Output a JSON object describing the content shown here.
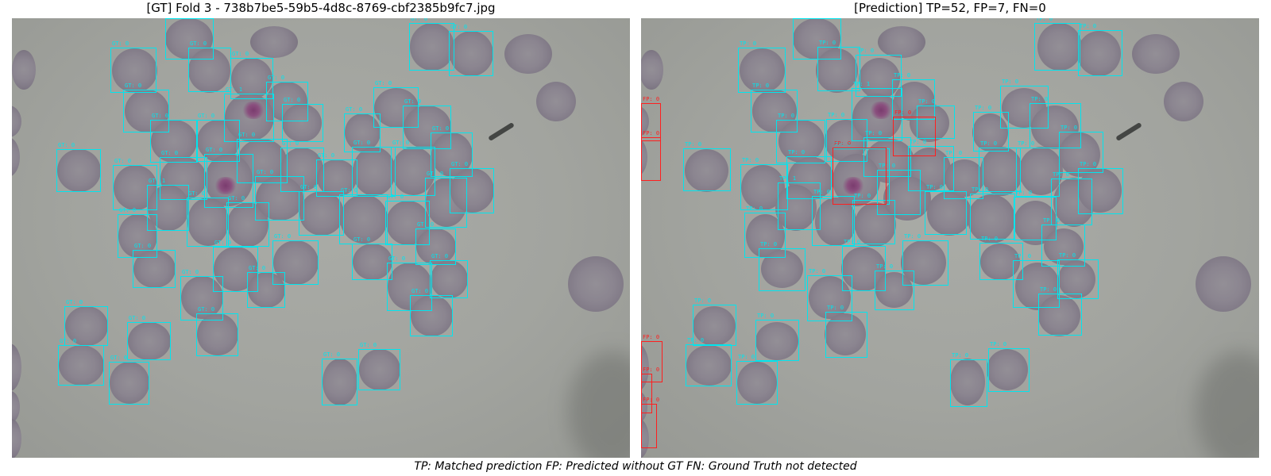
{
  "left_panel": {
    "title": "[GT] Fold 3 - 738b7be5-59b5-4d8c-8769-cbf2385b9fc7.jpg",
    "boxes": [
      {
        "label": "GT: 0"
      },
      {
        "label": "GT: 0"
      },
      {
        "label": "GT: 0"
      },
      {
        "label": "GT: 0"
      },
      {
        "label": "GT: 0"
      },
      {
        "label": "GT: 0"
      },
      {
        "label": "GT: 0"
      },
      {
        "label": "GT: 0"
      },
      {
        "label": "GT: 0"
      },
      {
        "label": "GT: 1"
      },
      {
        "label": "GT: 0"
      },
      {
        "label": "GT: 0"
      },
      {
        "label": "GT: 0"
      },
      {
        "label": "GT: 0"
      },
      {
        "label": "GT: 0"
      },
      {
        "label": "GT: 0"
      },
      {
        "label": "GT: 0"
      },
      {
        "label": "GT: 0"
      },
      {
        "label": "GT: 0"
      },
      {
        "label": "GT: 0"
      },
      {
        "label": "GT: 1"
      },
      {
        "label": "GT: 0"
      },
      {
        "label": "GT: 0"
      },
      {
        "label": "GT: 0"
      },
      {
        "label": "GT: 0"
      },
      {
        "label": "GT: 0"
      },
      {
        "label": "GT: 0"
      },
      {
        "label": "GT: 0"
      },
      {
        "label": "GT: 0"
      },
      {
        "label": "GT: 0"
      },
      {
        "label": "GT: 0"
      },
      {
        "label": "GT: 0"
      },
      {
        "label": "GT: 0"
      },
      {
        "label": "GT: 0"
      },
      {
        "label": "GT: 0"
      },
      {
        "label": "GT: 0"
      },
      {
        "label": "GT: 0"
      },
      {
        "label": "GT: 0"
      },
      {
        "label": "GT: 0"
      },
      {
        "label": "GT: 0"
      },
      {
        "label": "GT: 0"
      },
      {
        "label": "GT: 0"
      },
      {
        "label": "GT: 0"
      },
      {
        "label": "GT: 0"
      },
      {
        "label": "GT: 0"
      },
      {
        "label": "GT: 0"
      },
      {
        "label": "GT: 0"
      },
      {
        "label": "GT: 0"
      },
      {
        "label": "GT: 0"
      },
      {
        "label": "GT: 0"
      },
      {
        "label": "GT: 0"
      },
      {
        "label": "GT: 0"
      }
    ]
  },
  "right_panel": {
    "title": "[Prediction] TP=52, FP=7, FN=0",
    "boxes": [
      {
        "label": "TP: 0"
      },
      {
        "label": "TP: 0"
      },
      {
        "label": "TP: 0"
      },
      {
        "label": "TP: 0"
      },
      {
        "label": "TP: 0"
      },
      {
        "label": "TP: 0"
      },
      {
        "label": "TP: 0"
      },
      {
        "label": "TP: 0"
      },
      {
        "label": "TP: 0"
      },
      {
        "label": "TP: 1"
      },
      {
        "label": "TP: 0"
      },
      {
        "label": "TP: 0"
      },
      {
        "label": "TP: 0"
      },
      {
        "label": "TP: 0"
      },
      {
        "label": "TP: 0"
      },
      {
        "label": "TP: 0"
      },
      {
        "label": "TP: 0"
      },
      {
        "label": "TP: 0"
      },
      {
        "label": "TP: 0"
      },
      {
        "label": "TP: 0"
      },
      {
        "label": "TP: 1"
      },
      {
        "label": "TP: 0"
      },
      {
        "label": "TP: 0"
      },
      {
        "label": "TP: 0"
      },
      {
        "label": "TP: 0"
      },
      {
        "label": "TP: 0"
      },
      {
        "label": "TP: 0"
      },
      {
        "label": "TP: 0"
      },
      {
        "label": "TP: 0"
      },
      {
        "label": "TP: 0"
      },
      {
        "label": "TP: 0"
      },
      {
        "label": "TP: 0"
      },
      {
        "label": "TP: 0"
      },
      {
        "label": "TP: 0"
      },
      {
        "label": "TP: 0"
      },
      {
        "label": "TP: 0"
      },
      {
        "label": "TP: 0"
      },
      {
        "label": "TP: 0"
      },
      {
        "label": "TP: 0"
      },
      {
        "label": "TP: 0"
      },
      {
        "label": "TP: 0"
      },
      {
        "label": "TP: 0"
      },
      {
        "label": "TP: 0"
      },
      {
        "label": "TP: 0"
      },
      {
        "label": "TP: 0"
      },
      {
        "label": "TP: 0"
      },
      {
        "label": "TP: 0"
      },
      {
        "label": "TP: 0"
      },
      {
        "label": "TP: 0"
      },
      {
        "label": "TP: 0"
      },
      {
        "label": "TP: 0"
      },
      {
        "label": "TP: 0"
      },
      {
        "label": "FP: 0"
      },
      {
        "label": "FP: 0"
      },
      {
        "label": "FP: 0"
      },
      {
        "label": "FP: 0"
      },
      {
        "label": "FP: 0"
      },
      {
        "label": "FP: 0"
      },
      {
        "label": "FP: 0"
      }
    ]
  },
  "caption": "TP: Matched prediction   FP: Predicted without GT   FN: Ground Truth not detected",
  "colors": {
    "tp_box": "#00e5ee",
    "fp_box": "#ff1f1f",
    "background": "#a5a7a2"
  }
}
